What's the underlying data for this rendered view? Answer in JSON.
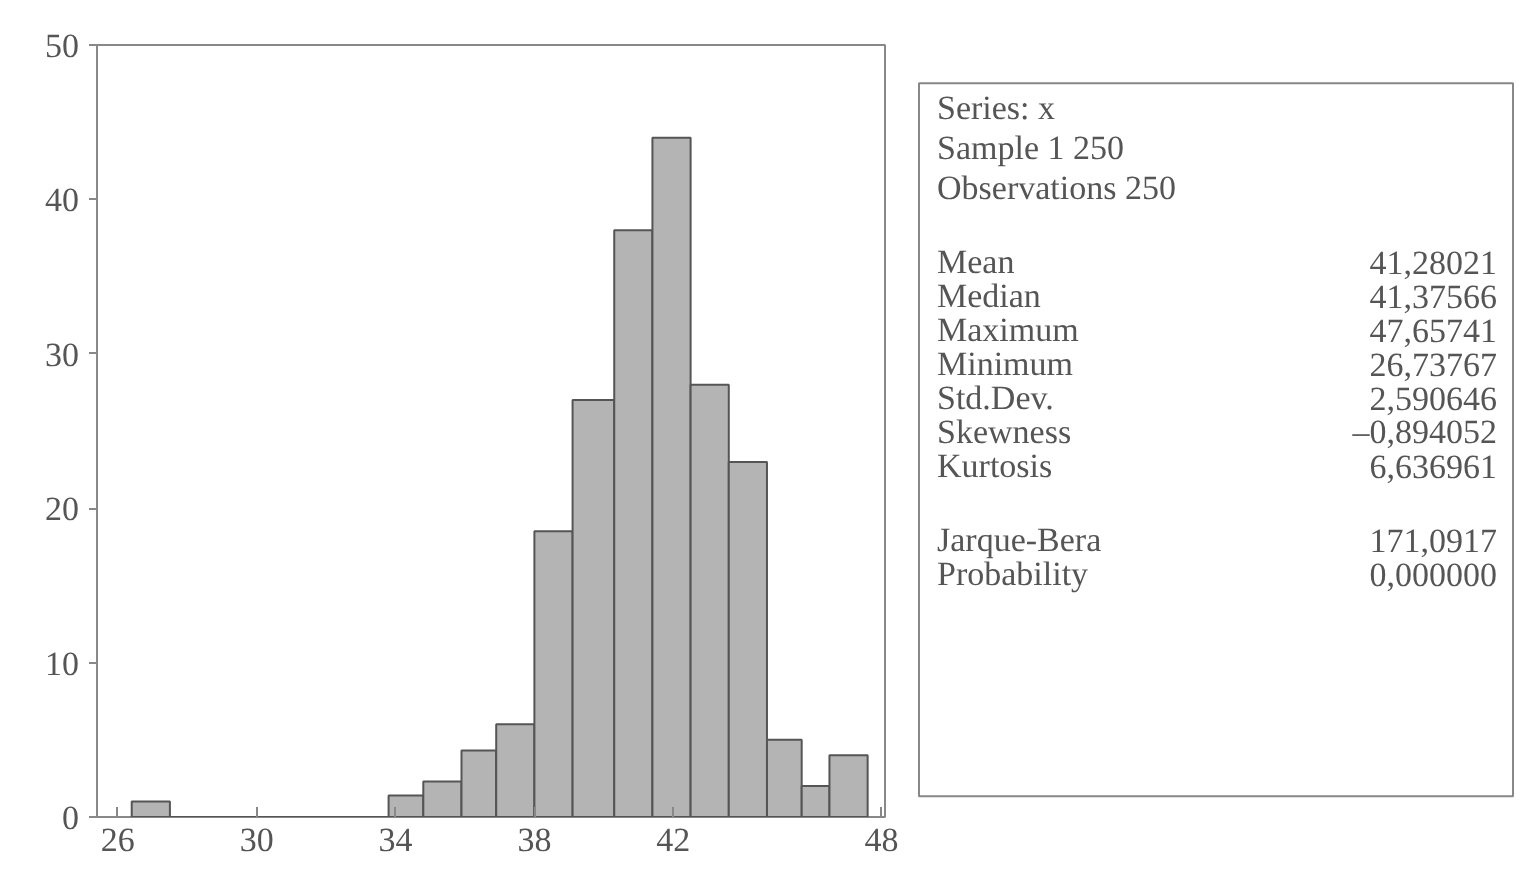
{
  "chart_data": {
    "type": "histogram",
    "bins": [
      26.4,
      27.5,
      33.8,
      34.8,
      35.9,
      36.9,
      38.0,
      39.1,
      40.3,
      41.4,
      42.5,
      43.6,
      44.7,
      45.7,
      46.5,
      47.6
    ],
    "values": [
      1,
      0,
      1.4,
      2.3,
      4.3,
      6,
      18.5,
      27,
      38,
      44,
      28,
      23,
      5,
      2,
      4
    ],
    "color": "#b4b4b4",
    "xlim": [
      25.4,
      48.1
    ],
    "ylim": [
      0,
      50
    ],
    "xticks": [
      26,
      30,
      34,
      38,
      42,
      48
    ],
    "yticks": [
      0,
      10,
      20,
      30,
      40,
      50
    ],
    "grid": false,
    "annotations": [
      "Series: x",
      "Sample 1 250",
      "Observations 250",
      "Mean",
      "41,28021",
      "Median",
      "41,37566",
      "Maximum",
      "47,65741",
      "Minimum",
      "26,73767",
      "Std.Dev.",
      "2,590646",
      "Skewness",
      "–0,894052",
      "Kurtosis",
      "6,636961",
      "Jarque-Bera",
      "171,0917",
      "Probability",
      "0,000000"
    ]
  }
}
